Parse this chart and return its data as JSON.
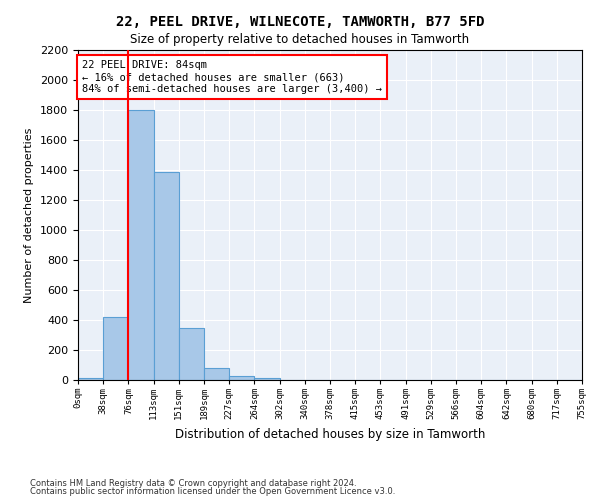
{
  "title": "22, PEEL DRIVE, WILNECOTE, TAMWORTH, B77 5FD",
  "subtitle": "Size of property relative to detached houses in Tamworth",
  "xlabel": "Distribution of detached houses by size in Tamworth",
  "ylabel": "Number of detached properties",
  "bar_values": [
    15,
    420,
    1800,
    1390,
    350,
    80,
    30,
    15,
    0,
    0,
    0,
    0,
    0,
    0,
    0,
    0,
    0,
    0,
    0,
    0
  ],
  "bin_labels": [
    "0sqm",
    "38sqm",
    "76sqm",
    "113sqm",
    "151sqm",
    "189sqm",
    "227sqm",
    "264sqm",
    "302sqm",
    "340sqm",
    "378sqm",
    "415sqm",
    "453sqm",
    "491sqm",
    "529sqm",
    "566sqm",
    "604sqm",
    "642sqm",
    "680sqm",
    "717sqm",
    "755sqm"
  ],
  "bar_color": "#a8c8e8",
  "bar_edge_color": "#5a9fd4",
  "marker_color": "red",
  "annotation_text": "22 PEEL DRIVE: 84sqm\n← 16% of detached houses are smaller (663)\n84% of semi-detached houses are larger (3,400) →",
  "annotation_box_color": "white",
  "annotation_box_edge": "red",
  "ylim": [
    0,
    2200
  ],
  "yticks": [
    0,
    200,
    400,
    600,
    800,
    1000,
    1200,
    1400,
    1600,
    1800,
    2000,
    2200
  ],
  "background_color": "#eaf0f8",
  "footer_line1": "Contains HM Land Registry data © Crown copyright and database right 2024.",
  "footer_line2": "Contains public sector information licensed under the Open Government Licence v3.0."
}
